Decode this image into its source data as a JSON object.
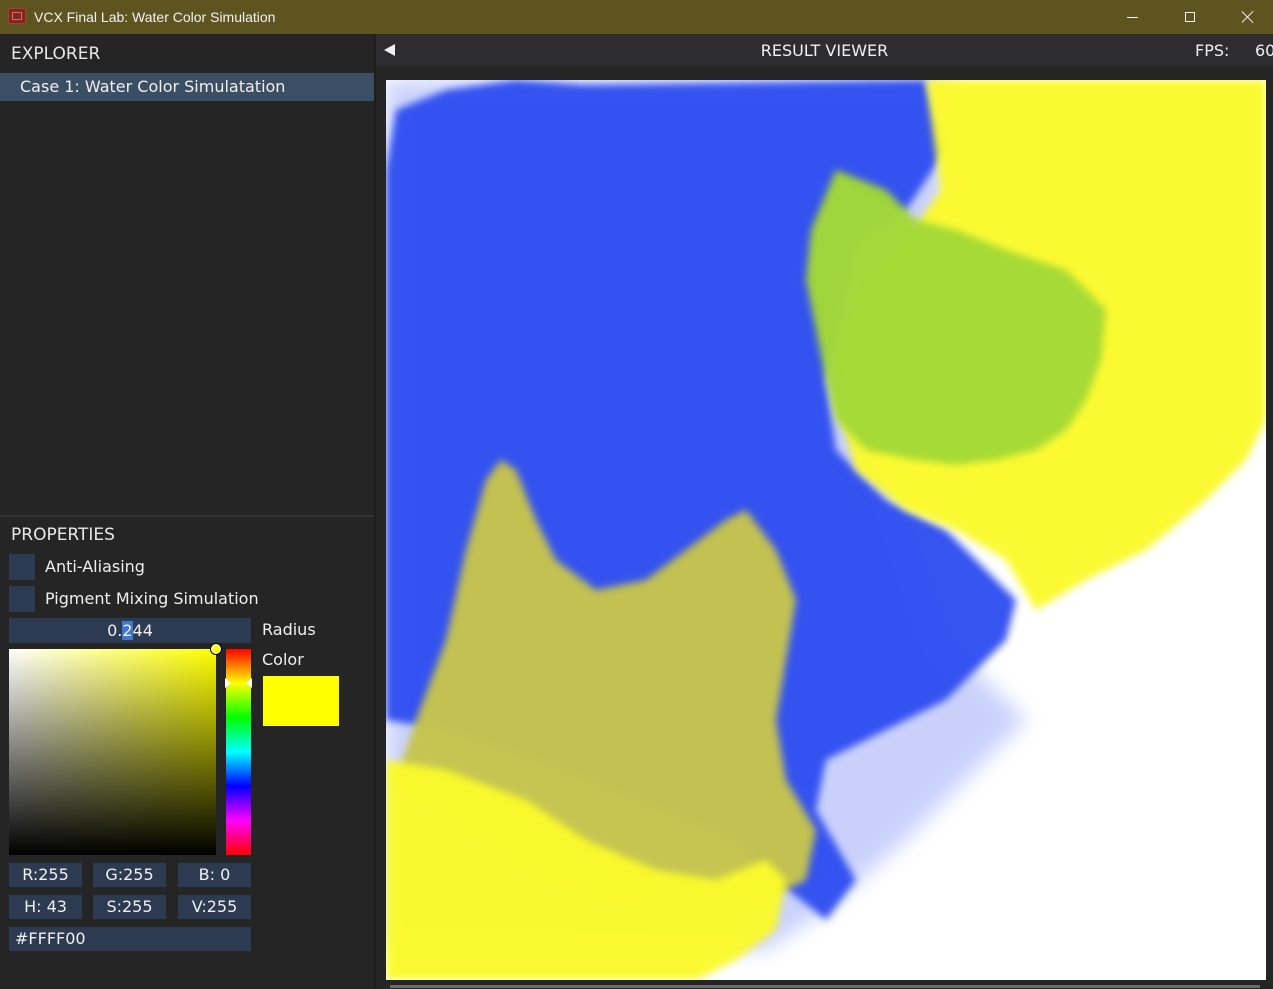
{
  "window": {
    "title": "VCX Final Lab: Water Color Simulation"
  },
  "explorer": {
    "header": "EXPLORER",
    "items": [
      {
        "label": "Case 1: Water Color Simulatation",
        "selected": true
      }
    ]
  },
  "properties": {
    "header": "PROPERTIES",
    "anti_aliasing": {
      "label": "Anti-Aliasing",
      "checked": false
    },
    "pigment_mixing": {
      "label": "Pigment Mixing Simulation",
      "checked": false
    },
    "radius": {
      "value_before_sel": "0.",
      "value_sel": "2",
      "value_after_sel": "44",
      "label": "Radius"
    },
    "color": {
      "label": "Color",
      "swatch": "#ffff00",
      "r": "R:255",
      "g": "G:255",
      "b": "B:  0",
      "h": "H: 43",
      "s": "S:255",
      "v": "V:255",
      "hex": "#FFFF00"
    }
  },
  "viewer": {
    "title": "RESULT VIEWER",
    "fps_label": "FPS:",
    "fps_value": "60"
  },
  "paint_colors": {
    "blue": "#2f4ef0",
    "yellow": "#fbfa2a",
    "green": "#a3d935",
    "olive": "#c6c44c"
  }
}
